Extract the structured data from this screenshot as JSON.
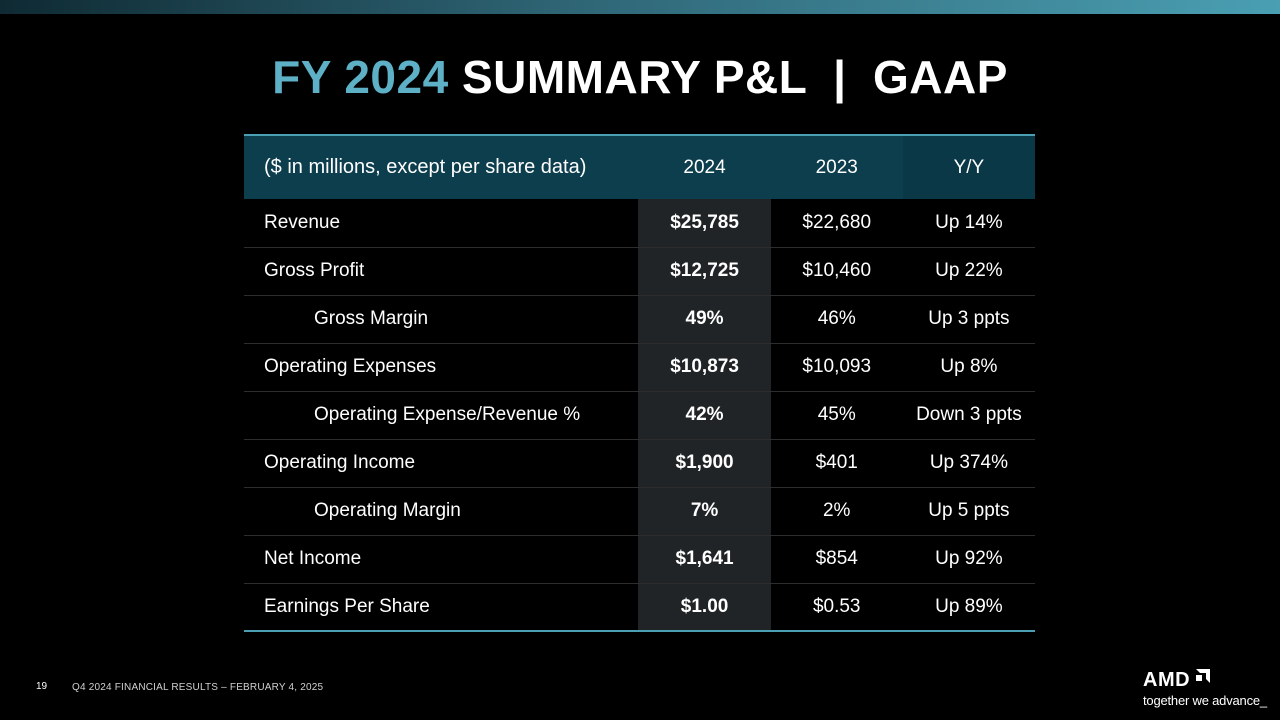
{
  "slide": {
    "title_accent": "FY 2024",
    "title_rest": "SUMMARY P&L  |  GAAP",
    "page_number": "19",
    "footer": "Q4 2024 FINANCIAL RESULTS – FEBRUARY 4, 2025",
    "logo_text": "AMD",
    "logo_icon": "amd-arrow-icon",
    "tagline": "together we advance_",
    "accent_color": "#5eb0c6",
    "header_color": "#0d3e4e"
  },
  "table": {
    "headers": [
      "($ in millions, except per share data)",
      "2024",
      "2023",
      "Y/Y"
    ],
    "rows": [
      {
        "label": "Revenue",
        "v2024": "$25,785",
        "v2023": "$22,680",
        "yy": "Up 14%"
      },
      {
        "label": "Gross Profit",
        "v2024": "$12,725",
        "v2023": "$10,460",
        "yy": "Up 22%"
      },
      {
        "label": "Gross Margin",
        "v2024": "49%",
        "v2023": "46%",
        "yy": "Up 3 ppts"
      },
      {
        "label": "Operating Expenses",
        "v2024": "$10,873",
        "v2023": "$10,093",
        "yy": "Up 8%"
      },
      {
        "label": "Operating Expense/Revenue %",
        "v2024": "42%",
        "v2023": "45%",
        "yy": "Down 3 ppts"
      },
      {
        "label": "Operating Income",
        "v2024": "$1,900",
        "v2023": "$401",
        "yy": "Up 374%"
      },
      {
        "label": "Operating Margin",
        "v2024": "7%",
        "v2023": "2%",
        "yy": "Up 5 ppts"
      },
      {
        "label": "Net Income",
        "v2024": "$1,641",
        "v2023": "$854",
        "yy": "Up 92%"
      },
      {
        "label": "Earnings Per Share",
        "v2024": "$1.00",
        "v2023": "$0.53",
        "yy": "Up 89%"
      }
    ]
  }
}
